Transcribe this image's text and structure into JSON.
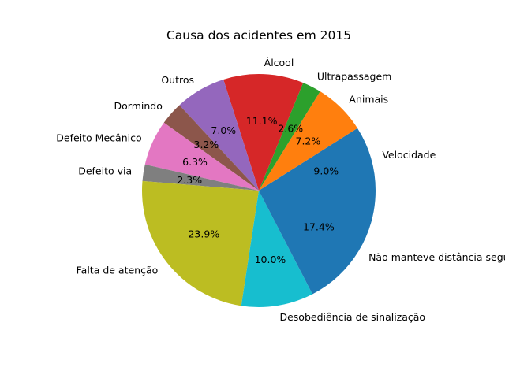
{
  "chart_data": {
    "type": "pie",
    "title": "Causa dos acidentes em 2015",
    "start_angle_deg": 0,
    "direction": "counterclockwise",
    "slices": [
      {
        "label": "Velocidade",
        "value": 9.0,
        "pct_label": "9.0%",
        "color": "#1f77b4"
      },
      {
        "label": "Animais",
        "value": 7.2,
        "pct_label": "7.2%",
        "color": "#ff7f0e"
      },
      {
        "label": "Ultrapassagem",
        "value": 2.6,
        "pct_label": "2.6%",
        "color": "#2ca02c"
      },
      {
        "label": "Álcool",
        "value": 11.1,
        "pct_label": "11.1%",
        "color": "#d62728"
      },
      {
        "label": "Outros",
        "value": 7.0,
        "pct_label": "7.0%",
        "color": "#9467bd"
      },
      {
        "label": "Dormindo",
        "value": 3.2,
        "pct_label": "3.2%",
        "color": "#8c564b"
      },
      {
        "label": "Defeito Mecânico",
        "value": 6.3,
        "pct_label": "6.3%",
        "color": "#e377c2"
      },
      {
        "label": "Defeito via",
        "value": 2.3,
        "pct_label": "2.3%",
        "color": "#7f7f7f"
      },
      {
        "label": "Falta de atenção",
        "value": 23.9,
        "pct_label": "23.9%",
        "color": "#bcbd22"
      },
      {
        "label": "Desobediência de sinalização",
        "value": 10.0,
        "pct_label": "10.0%",
        "color": "#17becf"
      },
      {
        "label": "Não manteve distância segura",
        "value": 17.4,
        "pct_label": "17.4%",
        "color": "#1f77b4"
      }
    ]
  }
}
